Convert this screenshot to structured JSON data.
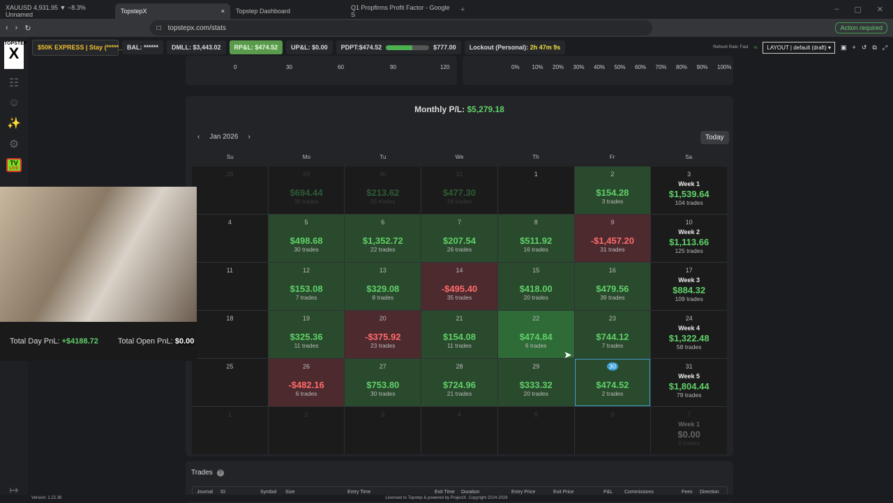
{
  "browser": {
    "tabs": [
      {
        "label": "XAUUSD 4,931.95 ▼ −8.3% Unnamed",
        "active": false
      },
      {
        "label": "TopstepX",
        "active": true
      },
      {
        "label": "Topstep Dashboard",
        "active": false
      },
      {
        "label": "Q1 Propfirms Profit Factor - Google S",
        "active": false
      }
    ],
    "url": "topstepx.com/stats",
    "action_required": "Action required"
  },
  "topbar": {
    "account": "$50K EXPRESS | Stay (*****_",
    "bal": "BAL: ******",
    "dmll": "DMLL: $3,443.02",
    "rpl": "RP&L: $474.52",
    "upl": "UP&L: $0.00",
    "pdpt": "PDPT:$474.52",
    "pdpt_progress": 0.61,
    "pdpt_target": "$777.00",
    "lockout_label": "Lockout (Personal):",
    "lockout_value": "2h 47m 9s",
    "refresh": "Refresh Rate: Fast",
    "layout": "LAYOUT | default (draft)"
  },
  "sidebar": {
    "logo": "TOPSTEP",
    "tv": "TV",
    "tv_live": "LIVE",
    "version": "Version: 1.22.38"
  },
  "charts_top": {
    "left_ticks": [
      "0",
      "30",
      "60",
      "90",
      "120"
    ],
    "right_ticks": [
      "0%",
      "10%",
      "20%",
      "30%",
      "40%",
      "50%",
      "60%",
      "70%",
      "80%",
      "90%",
      "100%"
    ]
  },
  "calendar": {
    "title_label": "Monthly P/L:",
    "title_value": "$5,279.18",
    "month": "Jan 2026",
    "today": "Today",
    "dow": [
      "Su",
      "Mo",
      "Tu",
      "We",
      "Th",
      "Fr",
      "Sa"
    ],
    "cells": [
      {
        "d": "28",
        "out": true
      },
      {
        "d": "29",
        "pl": "$694.44",
        "tr": "38 trades",
        "out": true,
        "s": "pos"
      },
      {
        "d": "30",
        "pl": "$213.62",
        "tr": "35 trades",
        "out": true,
        "s": "pos"
      },
      {
        "d": "31",
        "pl": "$477.30",
        "tr": "28 trades",
        "out": true,
        "s": "pos"
      },
      {
        "d": "1"
      },
      {
        "d": "2",
        "pl": "$154.28",
        "tr": "3 trades",
        "s": "pos"
      },
      {
        "d": "3",
        "wk": "Week 1",
        "pl": "$1,539.64",
        "tr": "104 trades",
        "s": "pos"
      },
      {
        "d": "4"
      },
      {
        "d": "5",
        "pl": "$498.68",
        "tr": "30 trades",
        "s": "pos"
      },
      {
        "d": "6",
        "pl": "$1,352.72",
        "tr": "22 trades",
        "s": "pos"
      },
      {
        "d": "7",
        "pl": "$207.54",
        "tr": "26 trades",
        "s": "pos"
      },
      {
        "d": "8",
        "pl": "$511.92",
        "tr": "16 trades",
        "s": "pos"
      },
      {
        "d": "9",
        "pl": "-$1,457.20",
        "tr": "31 trades",
        "s": "neg"
      },
      {
        "d": "10",
        "wk": "Week 2",
        "pl": "$1,113.66",
        "tr": "125 trades",
        "s": "pos"
      },
      {
        "d": "11"
      },
      {
        "d": "12",
        "pl": "$153.08",
        "tr": "7 trades",
        "s": "pos"
      },
      {
        "d": "13",
        "pl": "$329.08",
        "tr": "8 trades",
        "s": "pos"
      },
      {
        "d": "14",
        "pl": "-$495.40",
        "tr": "35 trades",
        "s": "neg"
      },
      {
        "d": "15",
        "pl": "$418.00",
        "tr": "20 trades",
        "s": "pos"
      },
      {
        "d": "16",
        "pl": "$479.56",
        "tr": "39 trades",
        "s": "pos"
      },
      {
        "d": "17",
        "wk": "Week 3",
        "pl": "$884.32",
        "tr": "109 trades",
        "s": "pos"
      },
      {
        "d": "18"
      },
      {
        "d": "19",
        "pl": "$325.36",
        "tr": "11 trades",
        "s": "pos"
      },
      {
        "d": "20",
        "pl": "-$375.92",
        "tr": "23 trades",
        "s": "neg"
      },
      {
        "d": "21",
        "pl": "$154.08",
        "tr": "11 trades",
        "s": "pos"
      },
      {
        "d": "22",
        "pl": "$474.84",
        "tr": "6 trades",
        "s": "pos",
        "hl": true
      },
      {
        "d": "23",
        "pl": "$744.12",
        "tr": "7 trades",
        "s": "pos"
      },
      {
        "d": "24",
        "wk": "Week 4",
        "pl": "$1,322.48",
        "tr": "58 trades",
        "s": "pos"
      },
      {
        "d": "25"
      },
      {
        "d": "26",
        "pl": "-$482.16",
        "tr": "6 trades",
        "s": "neg"
      },
      {
        "d": "27",
        "pl": "$753.80",
        "tr": "30 trades",
        "s": "pos"
      },
      {
        "d": "28",
        "pl": "$724.96",
        "tr": "21 trades",
        "s": "pos"
      },
      {
        "d": "29",
        "pl": "$333.32",
        "tr": "20 trades",
        "s": "pos"
      },
      {
        "d": "30",
        "pl": "$474.52",
        "tr": "2 trades",
        "s": "pos",
        "sel": true
      },
      {
        "d": "31",
        "wk": "Week 5",
        "pl": "$1,804.44",
        "tr": "79 trades",
        "s": "pos"
      },
      {
        "d": "1",
        "out": true
      },
      {
        "d": "2",
        "out": true
      },
      {
        "d": "3",
        "out": true
      },
      {
        "d": "4",
        "out": true
      },
      {
        "d": "5",
        "out": true
      },
      {
        "d": "6",
        "out": true
      },
      {
        "d": "7",
        "wk": "Week 1",
        "pl": "$0.00",
        "tr": "0 trades",
        "out": true,
        "s": "zero"
      }
    ]
  },
  "overlay": {
    "total_day_label": "Total Day PnL:",
    "total_day_value": "+$4188.72",
    "total_open_label": "Total Open PnL:",
    "total_open_value": "$0.00"
  },
  "trades": {
    "title": "Trades",
    "columns": [
      "Journal",
      "ID",
      "Symbol",
      "Size",
      "Entry Time",
      "Exit Time",
      "Duration",
      "Entry Price",
      "Exit Price",
      "P&L",
      "Commissions",
      "Fees",
      "Direction"
    ]
  },
  "footer": "Licensed to Topstep & powered by ProjectX. Copyright 2024-2026"
}
